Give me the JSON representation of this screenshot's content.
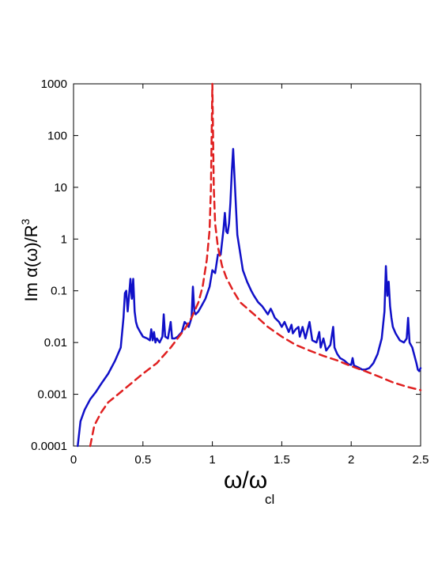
{
  "chart_data": {
    "type": "line",
    "xlabel": "ω/ω",
    "xlabel_sub": "cl",
    "ylabel": "Im α(ω)/R",
    "ylabel_sup": "3",
    "xlim": [
      0,
      2.5
    ],
    "ylim": [
      0.0001,
      1000
    ],
    "yscale": "log",
    "grid": false,
    "legend": "none",
    "x_ticks": [
      0,
      0.5,
      1,
      1.5,
      2,
      2.5
    ],
    "x_tick_labels": [
      "0",
      "0.5",
      "1",
      "1.5",
      "2",
      "2.5"
    ],
    "y_ticks": [
      0.0001,
      0.001,
      0.01,
      0.1,
      1,
      10,
      100,
      1000
    ],
    "y_tick_labels": [
      "0.0001",
      "0.001",
      "0.01",
      "0.1",
      "1",
      "10",
      "100",
      "1000"
    ],
    "series": [
      {
        "style": "solid",
        "color": "#1010c8",
        "x": [
          0.03,
          0.05,
          0.08,
          0.12,
          0.16,
          0.2,
          0.25,
          0.3,
          0.34,
          0.36,
          0.37,
          0.38,
          0.39,
          0.4,
          0.41,
          0.42,
          0.43,
          0.44,
          0.45,
          0.46,
          0.48,
          0.5,
          0.53,
          0.55,
          0.56,
          0.57,
          0.58,
          0.59,
          0.6,
          0.62,
          0.64,
          0.65,
          0.66,
          0.68,
          0.7,
          0.71,
          0.73,
          0.75,
          0.78,
          0.8,
          0.82,
          0.83,
          0.85,
          0.86,
          0.87,
          0.88,
          0.9,
          0.92,
          0.95,
          0.98,
          1.0,
          1.02,
          1.04,
          1.06,
          1.08,
          1.09,
          1.1,
          1.11,
          1.12,
          1.13,
          1.14,
          1.15,
          1.16,
          1.17,
          1.18,
          1.2,
          1.22,
          1.25,
          1.28,
          1.3,
          1.33,
          1.36,
          1.4,
          1.42,
          1.43,
          1.45,
          1.48,
          1.5,
          1.52,
          1.55,
          1.57,
          1.58,
          1.6,
          1.62,
          1.63,
          1.65,
          1.67,
          1.7,
          1.72,
          1.75,
          1.77,
          1.78,
          1.8,
          1.82,
          1.85,
          1.87,
          1.88,
          1.9,
          1.92,
          1.95,
          1.98,
          2.0,
          2.01,
          2.02,
          2.05,
          2.08,
          2.1,
          2.13,
          2.16,
          2.19,
          2.22,
          2.24,
          2.25,
          2.26,
          2.27,
          2.28,
          2.29,
          2.3,
          2.32,
          2.35,
          2.38,
          2.4,
          2.41,
          2.42,
          2.44,
          2.46,
          2.47,
          2.48,
          2.49,
          2.5
        ],
        "y": [
          0.0001,
          0.0003,
          0.0005,
          0.0008,
          0.0011,
          0.0016,
          0.0025,
          0.0045,
          0.008,
          0.03,
          0.09,
          0.1,
          0.04,
          0.08,
          0.17,
          0.07,
          0.17,
          0.04,
          0.025,
          0.02,
          0.016,
          0.013,
          0.012,
          0.011,
          0.018,
          0.011,
          0.016,
          0.01,
          0.012,
          0.01,
          0.013,
          0.035,
          0.013,
          0.012,
          0.025,
          0.012,
          0.012,
          0.013,
          0.016,
          0.025,
          0.022,
          0.02,
          0.03,
          0.12,
          0.04,
          0.035,
          0.04,
          0.05,
          0.07,
          0.12,
          0.25,
          0.22,
          0.5,
          0.5,
          1.5,
          3.2,
          1.4,
          1.3,
          2.0,
          5.0,
          20,
          55,
          15,
          4,
          1.2,
          0.55,
          0.25,
          0.15,
          0.1,
          0.08,
          0.06,
          0.05,
          0.035,
          0.045,
          0.04,
          0.03,
          0.025,
          0.02,
          0.025,
          0.016,
          0.022,
          0.015,
          0.018,
          0.02,
          0.013,
          0.02,
          0.012,
          0.025,
          0.011,
          0.01,
          0.016,
          0.008,
          0.012,
          0.007,
          0.009,
          0.02,
          0.008,
          0.006,
          0.005,
          0.0045,
          0.0038,
          0.0037,
          0.005,
          0.0036,
          0.0033,
          0.003,
          0.003,
          0.0032,
          0.004,
          0.006,
          0.012,
          0.04,
          0.3,
          0.08,
          0.15,
          0.05,
          0.03,
          0.02,
          0.015,
          0.011,
          0.01,
          0.012,
          0.03,
          0.01,
          0.008,
          0.005,
          0.004,
          0.003,
          0.0028,
          0.0032
        ]
      },
      {
        "style": "dashed",
        "color": "#e02020",
        "x": [
          0.12,
          0.15,
          0.2,
          0.25,
          0.3,
          0.4,
          0.5,
          0.6,
          0.7,
          0.8,
          0.85,
          0.9,
          0.93,
          0.96,
          0.98,
          0.99,
          1.0,
          1.01,
          1.02,
          1.04,
          1.07,
          1.1,
          1.15,
          1.2,
          1.3,
          1.4,
          1.5,
          1.6,
          1.7,
          1.8,
          1.9,
          2.0,
          2.1,
          2.2,
          2.3,
          2.4,
          2.5
        ],
        "y": [
          0.0001,
          0.00025,
          0.00045,
          0.0007,
          0.0009,
          0.0015,
          0.0025,
          0.004,
          0.008,
          0.018,
          0.03,
          0.06,
          0.12,
          0.4,
          1.5,
          10,
          1000,
          10,
          2.0,
          0.7,
          0.3,
          0.18,
          0.1,
          0.06,
          0.035,
          0.02,
          0.013,
          0.009,
          0.007,
          0.0055,
          0.0045,
          0.0035,
          0.0028,
          0.0022,
          0.0017,
          0.0014,
          0.0012
        ]
      }
    ]
  }
}
